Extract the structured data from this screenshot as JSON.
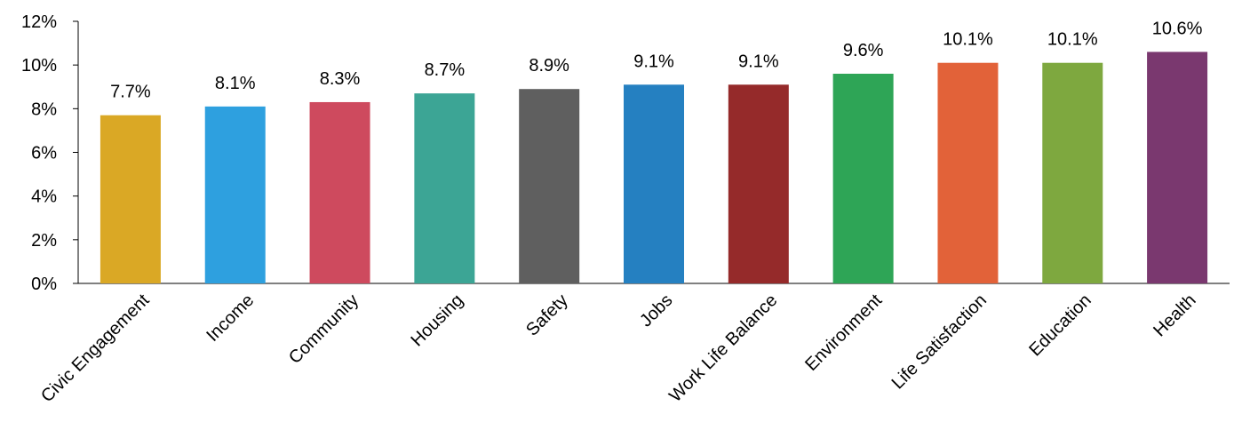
{
  "chart_data": {
    "type": "bar",
    "categories": [
      "Civic Engagement",
      "Income",
      "Community",
      "Housing",
      "Safety",
      "Jobs",
      "Work Life Balance",
      "Environment",
      "Life Satisfaction",
      "Education",
      "Health"
    ],
    "values": [
      7.7,
      8.1,
      8.3,
      8.7,
      8.9,
      9.1,
      9.1,
      9.6,
      10.1,
      10.1,
      10.6
    ],
    "data_labels": [
      "7.7%",
      "8.1%",
      "8.3%",
      "8.7%",
      "8.9%",
      "9.1%",
      "9.1%",
      "9.6%",
      "10.1%",
      "10.1%",
      "10.6%"
    ],
    "colors": [
      "#DAA825",
      "#2EA0DF",
      "#CE4A5E",
      "#3CA595",
      "#5F5F5F",
      "#2580C1",
      "#952A2A",
      "#2EA556",
      "#E26239",
      "#7EA83F",
      "#7A386F"
    ],
    "ylim": [
      0,
      12
    ],
    "yticks": [
      0,
      2,
      4,
      6,
      8,
      10,
      12
    ],
    "ytick_labels": [
      "0%",
      "2%",
      "4%",
      "6%",
      "8%",
      "10%",
      "12%"
    ],
    "xlabel": "",
    "ylabel": "",
    "grid": false,
    "legend": "none"
  }
}
